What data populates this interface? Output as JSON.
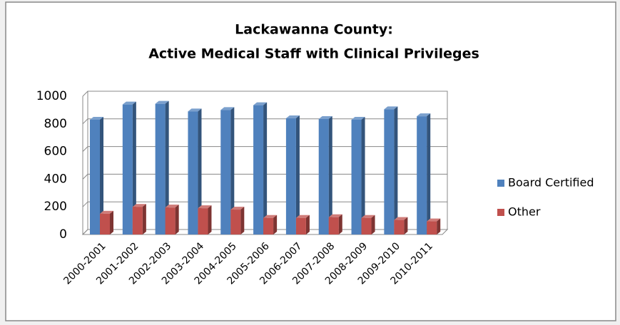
{
  "chart_data": {
    "type": "bar",
    "title": "Lackawanna County:",
    "subtitle": "Active Medical Staff with Clinical Privileges",
    "categories": [
      "2000-2001",
      "2001-2002",
      "2002-2003",
      "2003-2004",
      "2004-2005",
      "2005-2006",
      "2006-2007",
      "2007-2008",
      "2008-2009",
      "2009-2010",
      "2010-2011"
    ],
    "series": [
      {
        "name": "Board Certified",
        "color": "#4f81bd",
        "values": [
          830,
          940,
          945,
          890,
          900,
          935,
          840,
          835,
          830,
          905,
          855
        ]
      },
      {
        "name": "Other",
        "color": "#c0504d",
        "values": [
          150,
          200,
          195,
          190,
          180,
          120,
          120,
          125,
          120,
          105,
          95
        ]
      }
    ],
    "ylim": [
      0,
      1000
    ],
    "yticks": [
      0,
      200,
      400,
      600,
      800,
      1000
    ],
    "grid": true,
    "legend": "right"
  }
}
